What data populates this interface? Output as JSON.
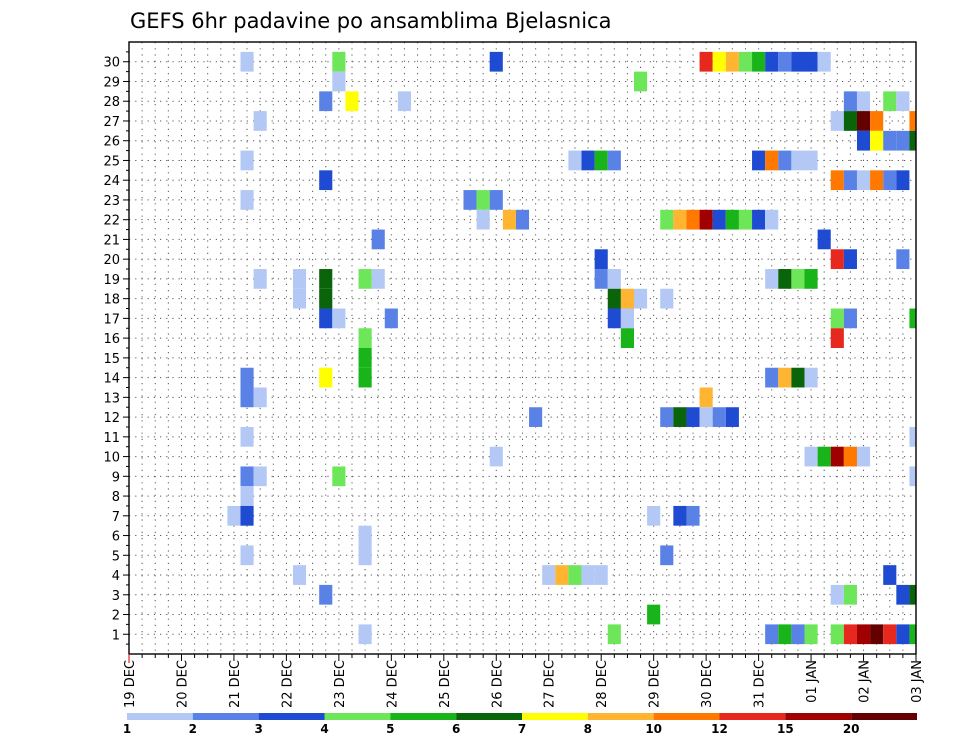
{
  "chart_data": {
    "type": "heatmap",
    "title": "GEFS 6hr padavine po ansamblima Bjelasnica",
    "xlabel": "",
    "ylabel": "",
    "x_tick_labels": [
      "19 DEC",
      "20 DEC",
      "21 DEC",
      "22 DEC",
      "23 DEC",
      "24 DEC",
      "25 DEC",
      "26 DEC",
      "27 DEC",
      "28 DEC",
      "29 DEC",
      "30 DEC",
      "31 DEC",
      "01 JAN",
      "02 JAN",
      "03 JAN"
    ],
    "xlim": [
      0,
      60
    ],
    "ylim": [
      0,
      31
    ],
    "y_ticks": [
      1,
      2,
      3,
      4,
      5,
      6,
      7,
      8,
      9,
      10,
      11,
      12,
      13,
      14,
      15,
      16,
      17,
      18,
      19,
      20,
      21,
      22,
      23,
      24,
      25,
      26,
      27,
      28,
      29,
      30
    ],
    "grid": true,
    "legend": {
      "placement": "bottom",
      "labels": [
        "1",
        "2",
        "3",
        "4",
        "5",
        "6",
        "7",
        "8",
        "10",
        "12",
        "15",
        "20"
      ],
      "colors": [
        "#b4c8f5",
        "#5a82e6",
        "#1e4bd2",
        "#6ee65a",
        "#19b419",
        "#0a640a",
        "#ffff00",
        "#ffb432",
        "#ff7800",
        "#e6281e",
        "#a00000",
        "#640000"
      ]
    },
    "colors": [
      "#b4c8f5",
      "#5a82e6",
      "#1e4bd2",
      "#6ee65a",
      "#19b419",
      "#0a640a",
      "#ffff00",
      "#ffb432",
      "#ff7800",
      "#e6281e",
      "#a00000",
      "#640000"
    ],
    "cells": [
      [
        30,
        9,
        0
      ],
      [
        30,
        16,
        3
      ],
      [
        30,
        28,
        2
      ],
      [
        30,
        44,
        9
      ],
      [
        30,
        45,
        6
      ],
      [
        30,
        46,
        7
      ],
      [
        30,
        47,
        3
      ],
      [
        30,
        48,
        4
      ],
      [
        30,
        49,
        2
      ],
      [
        30,
        50,
        1
      ],
      [
        30,
        51,
        2
      ],
      [
        30,
        52,
        2
      ],
      [
        30,
        53,
        0
      ],
      [
        29,
        16,
        0
      ],
      [
        29,
        39,
        3
      ],
      [
        28,
        15,
        1
      ],
      [
        28,
        17,
        6
      ],
      [
        28,
        21,
        0
      ],
      [
        28,
        55,
        1
      ],
      [
        28,
        56,
        0
      ],
      [
        28,
        58,
        3
      ],
      [
        28,
        59,
        0
      ],
      [
        27,
        10,
        0
      ],
      [
        27,
        54,
        0
      ],
      [
        27,
        55,
        5
      ],
      [
        27,
        56,
        11
      ],
      [
        27,
        57,
        8
      ],
      [
        27,
        60,
        8
      ],
      [
        26,
        56,
        2
      ],
      [
        26,
        57,
        6
      ],
      [
        26,
        58,
        1
      ],
      [
        26,
        59,
        1
      ],
      [
        26,
        60,
        5
      ],
      [
        25,
        9,
        0
      ],
      [
        25,
        34,
        0
      ],
      [
        25,
        35,
        2
      ],
      [
        25,
        36,
        4
      ],
      [
        25,
        37,
        1
      ],
      [
        25,
        48,
        2
      ],
      [
        25,
        49,
        8
      ],
      [
        25,
        50,
        1
      ],
      [
        25,
        51,
        0
      ],
      [
        25,
        52,
        0
      ],
      [
        24,
        15,
        2
      ],
      [
        24,
        54,
        8
      ],
      [
        24,
        55,
        1
      ],
      [
        24,
        56,
        0
      ],
      [
        24,
        57,
        8
      ],
      [
        24,
        58,
        1
      ],
      [
        24,
        59,
        2
      ],
      [
        23,
        9,
        0
      ],
      [
        23,
        26,
        1
      ],
      [
        23,
        27,
        3
      ],
      [
        23,
        28,
        1
      ],
      [
        22,
        27,
        0
      ],
      [
        22,
        29,
        7
      ],
      [
        22,
        30,
        1
      ],
      [
        22,
        41,
        3
      ],
      [
        22,
        42,
        7
      ],
      [
        22,
        43,
        8
      ],
      [
        22,
        44,
        10
      ],
      [
        22,
        45,
        2
      ],
      [
        22,
        46,
        4
      ],
      [
        22,
        47,
        3
      ],
      [
        22,
        48,
        2
      ],
      [
        22,
        49,
        0
      ],
      [
        21,
        19,
        1
      ],
      [
        21,
        53,
        2
      ],
      [
        20,
        36,
        2
      ],
      [
        20,
        54,
        9
      ],
      [
        20,
        55,
        2
      ],
      [
        20,
        59,
        1
      ],
      [
        19,
        10,
        0
      ],
      [
        19,
        13,
        0
      ],
      [
        19,
        15,
        5
      ],
      [
        19,
        18,
        3
      ],
      [
        19,
        19,
        0
      ],
      [
        19,
        36,
        1
      ],
      [
        19,
        37,
        0
      ],
      [
        19,
        49,
        0
      ],
      [
        19,
        50,
        5
      ],
      [
        19,
        51,
        3
      ],
      [
        19,
        52,
        4
      ],
      [
        18,
        13,
        0
      ],
      [
        18,
        15,
        5
      ],
      [
        18,
        37,
        5
      ],
      [
        18,
        38,
        7
      ],
      [
        18,
        39,
        0
      ],
      [
        18,
        41,
        0
      ],
      [
        17,
        15,
        2
      ],
      [
        17,
        16,
        0
      ],
      [
        17,
        20,
        1
      ],
      [
        17,
        37,
        2
      ],
      [
        17,
        38,
        0
      ],
      [
        17,
        54,
        3
      ],
      [
        17,
        55,
        1
      ],
      [
        17,
        60,
        4
      ],
      [
        16,
        18,
        3
      ],
      [
        16,
        38,
        4
      ],
      [
        16,
        54,
        9
      ],
      [
        15,
        18,
        4
      ],
      [
        14,
        9,
        1
      ],
      [
        14,
        15,
        6
      ],
      [
        14,
        18,
        4
      ],
      [
        14,
        49,
        1
      ],
      [
        14,
        50,
        7
      ],
      [
        14,
        51,
        5
      ],
      [
        14,
        52,
        0
      ],
      [
        13,
        9,
        1
      ],
      [
        13,
        10,
        0
      ],
      [
        13,
        44,
        7
      ],
      [
        12,
        31,
        1
      ],
      [
        12,
        41,
        1
      ],
      [
        12,
        42,
        5
      ],
      [
        12,
        43,
        2
      ],
      [
        12,
        44,
        0
      ],
      [
        12,
        45,
        1
      ],
      [
        12,
        46,
        2
      ],
      [
        11,
        9,
        0
      ],
      [
        11,
        60,
        0
      ],
      [
        10,
        28,
        0
      ],
      [
        10,
        52,
        0
      ],
      [
        10,
        53,
        4
      ],
      [
        10,
        54,
        10
      ],
      [
        10,
        55,
        8
      ],
      [
        10,
        56,
        0
      ],
      [
        9,
        9,
        1
      ],
      [
        9,
        10,
        0
      ],
      [
        9,
        16,
        3
      ],
      [
        9,
        60,
        0
      ],
      [
        8,
        9,
        0
      ],
      [
        7,
        8,
        0
      ],
      [
        7,
        9,
        2
      ],
      [
        7,
        40,
        0
      ],
      [
        7,
        42,
        2
      ],
      [
        7,
        43,
        1
      ],
      [
        6,
        18,
        0
      ],
      [
        5,
        9,
        0
      ],
      [
        5,
        18,
        0
      ],
      [
        5,
        41,
        1
      ],
      [
        4,
        13,
        0
      ],
      [
        4,
        32,
        0
      ],
      [
        4,
        33,
        7
      ],
      [
        4,
        34,
        3
      ],
      [
        4,
        35,
        0
      ],
      [
        4,
        36,
        0
      ],
      [
        4,
        58,
        2
      ],
      [
        3,
        15,
        1
      ],
      [
        3,
        54,
        0
      ],
      [
        3,
        55,
        3
      ],
      [
        3,
        59,
        2
      ],
      [
        3,
        60,
        5
      ],
      [
        2,
        40,
        4
      ],
      [
        1,
        18,
        0
      ],
      [
        1,
        37,
        3
      ],
      [
        1,
        49,
        1
      ],
      [
        1,
        50,
        4
      ],
      [
        1,
        51,
        1
      ],
      [
        1,
        52,
        3
      ],
      [
        1,
        54,
        3
      ],
      [
        1,
        55,
        9
      ],
      [
        1,
        56,
        10
      ],
      [
        1,
        57,
        11
      ],
      [
        1,
        58,
        9
      ],
      [
        1,
        59,
        2
      ],
      [
        1,
        60,
        4
      ]
    ]
  }
}
